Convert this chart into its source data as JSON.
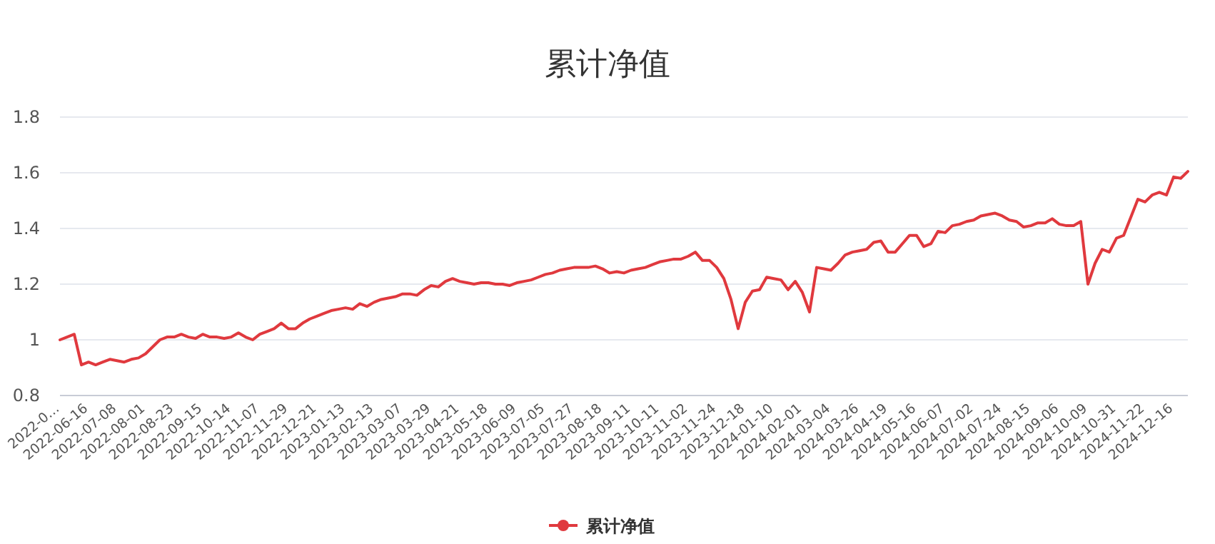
{
  "chart_data": {
    "type": "line",
    "title": "累计净值",
    "categories": [
      "2022-0…",
      null,
      null,
      null,
      "2022-06-16",
      null,
      null,
      null,
      "2022-07-08",
      null,
      null,
      null,
      "2022-08-01",
      null,
      null,
      null,
      "2022-08-23",
      null,
      null,
      null,
      "2022-09-15",
      null,
      null,
      null,
      "2022-10-14",
      null,
      null,
      null,
      "2022-11-07",
      null,
      null,
      null,
      "2022-11-29",
      null,
      null,
      null,
      "2022-12-21",
      null,
      null,
      null,
      "2023-01-13",
      null,
      null,
      null,
      "2023-02-13",
      null,
      null,
      null,
      "2023-03-07",
      null,
      null,
      null,
      "2023-03-29",
      null,
      null,
      null,
      "2023-04-21",
      null,
      null,
      null,
      "2023-05-18",
      null,
      null,
      null,
      "2023-06-09",
      null,
      null,
      null,
      "2023-07-05",
      null,
      null,
      null,
      "2023-07-27",
      null,
      null,
      null,
      "2023-08-18",
      null,
      null,
      null,
      "2023-09-11",
      null,
      null,
      null,
      "2023-10-11",
      null,
      null,
      null,
      "2023-11-02",
      null,
      null,
      null,
      "2023-11-24",
      null,
      null,
      null,
      "2023-12-18",
      null,
      null,
      null,
      "2024-01-10",
      null,
      null,
      null,
      "2024-02-01",
      null,
      null,
      null,
      "2024-03-04",
      null,
      null,
      null,
      "2024-03-26",
      null,
      null,
      null,
      "2024-04-19",
      null,
      null,
      null,
      "2024-05-16",
      null,
      null,
      null,
      "2024-06-07",
      null,
      null,
      null,
      "2024-07-02",
      null,
      null,
      null,
      "2024-07-24",
      null,
      null,
      null,
      "2024-08-15",
      null,
      null,
      null,
      "2024-09-06",
      null,
      null,
      null,
      "2024-10-09",
      null,
      null,
      null,
      "2024-10-31",
      null,
      null,
      null,
      "2024-11-22",
      null,
      null,
      null,
      "2024-12-16",
      null,
      null
    ],
    "series": [
      {
        "name": "累计净值",
        "color": "#e0393e",
        "values": [
          1.0,
          1.01,
          1.02,
          0.91,
          0.92,
          0.91,
          0.92,
          0.93,
          0.925,
          0.92,
          0.93,
          0.935,
          0.95,
          0.975,
          1.0,
          1.01,
          1.01,
          1.02,
          1.01,
          1.005,
          1.02,
          1.01,
          1.01,
          1.005,
          1.01,
          1.025,
          1.01,
          1.0,
          1.02,
          1.03,
          1.04,
          1.06,
          1.04,
          1.04,
          1.06,
          1.075,
          1.085,
          1.095,
          1.105,
          1.11,
          1.115,
          1.11,
          1.13,
          1.12,
          1.135,
          1.145,
          1.15,
          1.155,
          1.165,
          1.165,
          1.16,
          1.18,
          1.195,
          1.19,
          1.21,
          1.22,
          1.21,
          1.205,
          1.2,
          1.205,
          1.205,
          1.2,
          1.2,
          1.195,
          1.205,
          1.21,
          1.215,
          1.225,
          1.235,
          1.24,
          1.25,
          1.255,
          1.26,
          1.26,
          1.26,
          1.265,
          1.255,
          1.24,
          1.245,
          1.24,
          1.25,
          1.255,
          1.26,
          1.27,
          1.28,
          1.285,
          1.29,
          1.29,
          1.3,
          1.315,
          1.285,
          1.285,
          1.26,
          1.22,
          1.145,
          1.04,
          1.135,
          1.175,
          1.18,
          1.225,
          1.22,
          1.215,
          1.18,
          1.21,
          1.17,
          1.1,
          1.26,
          1.255,
          1.25,
          1.275,
          1.305,
          1.315,
          1.32,
          1.325,
          1.35,
          1.355,
          1.315,
          1.315,
          1.345,
          1.375,
          1.375,
          1.335,
          1.345,
          1.39,
          1.385,
          1.41,
          1.415,
          1.425,
          1.43,
          1.445,
          1.45,
          1.455,
          1.445,
          1.43,
          1.425,
          1.405,
          1.41,
          1.42,
          1.42,
          1.435,
          1.415,
          1.41,
          1.41,
          1.425,
          1.2,
          1.275,
          1.325,
          1.315,
          1.365,
          1.375,
          1.44,
          1.505,
          1.495,
          1.52,
          1.53,
          1.52,
          1.585,
          1.58,
          1.605
        ]
      }
    ],
    "ylim": [
      0.8,
      1.8
    ],
    "yticks": [
      0.8,
      1,
      1.2,
      1.4,
      1.6,
      1.8
    ],
    "grid": "y",
    "legend": "bottom",
    "marker": "none",
    "line_style": "solid"
  }
}
